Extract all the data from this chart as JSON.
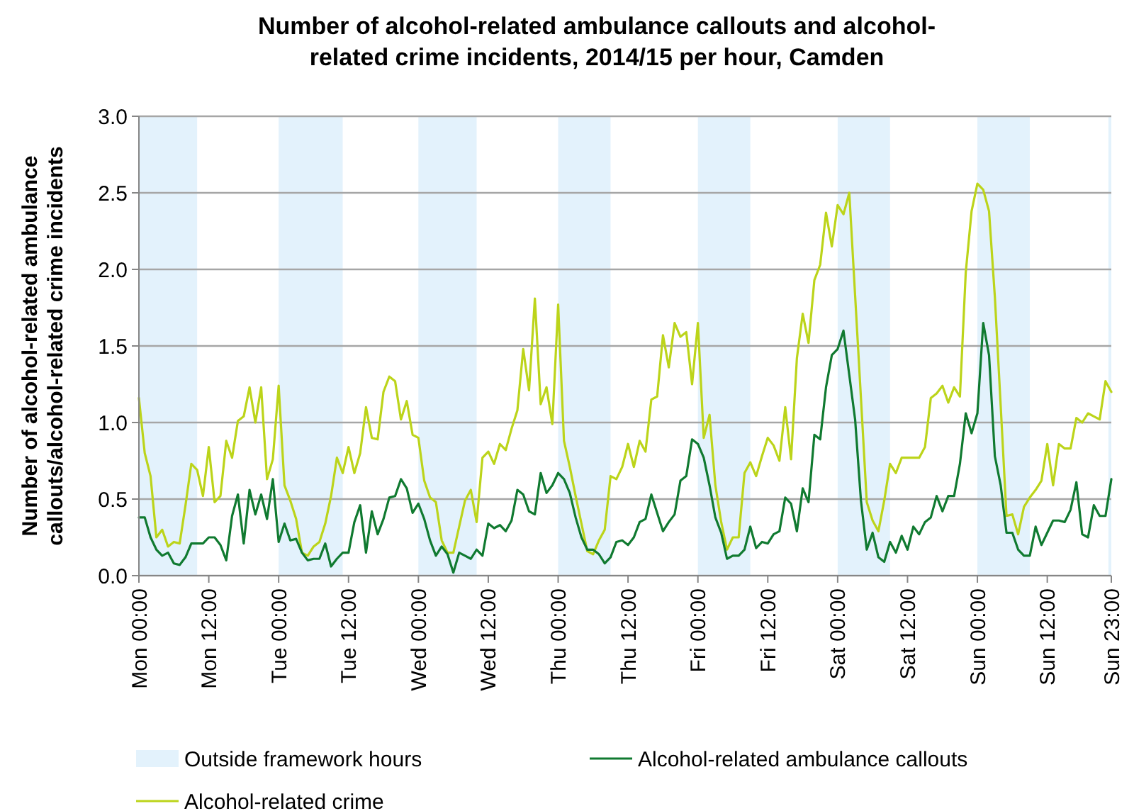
{
  "chart_data": {
    "type": "line",
    "title": "Number of alcohol-related ambulance callouts and alcohol-related crime incidents, 2014/15 per hour, Camden",
    "ylabel": "Number of alcohol-related ambulance callouts/alcohol-related crime incidents",
    "categories": [
      "Mon 00:00",
      null,
      null,
      null,
      null,
      null,
      null,
      null,
      null,
      null,
      null,
      null,
      "Mon 12:00",
      null,
      null,
      null,
      null,
      null,
      null,
      null,
      null,
      null,
      null,
      null,
      "Tue 00:00",
      null,
      null,
      null,
      null,
      null,
      null,
      null,
      null,
      null,
      null,
      null,
      "Tue 12:00",
      null,
      null,
      null,
      null,
      null,
      null,
      null,
      null,
      null,
      null,
      null,
      "Wed 00:00",
      null,
      null,
      null,
      null,
      null,
      null,
      null,
      null,
      null,
      null,
      null,
      "Wed 12:00",
      null,
      null,
      null,
      null,
      null,
      null,
      null,
      null,
      null,
      null,
      null,
      "Thu 00:00",
      null,
      null,
      null,
      null,
      null,
      null,
      null,
      null,
      null,
      null,
      null,
      "Thu 12:00",
      null,
      null,
      null,
      null,
      null,
      null,
      null,
      null,
      null,
      null,
      null,
      "Fri 00:00",
      null,
      null,
      null,
      null,
      null,
      null,
      null,
      null,
      null,
      null,
      null,
      "Fri 12:00",
      null,
      null,
      null,
      null,
      null,
      null,
      null,
      null,
      null,
      null,
      null,
      "Sat 00:00",
      null,
      null,
      null,
      null,
      null,
      null,
      null,
      null,
      null,
      null,
      null,
      "Sat 12:00",
      null,
      null,
      null,
      null,
      null,
      null,
      null,
      null,
      null,
      null,
      null,
      "Sun 00:00",
      null,
      null,
      null,
      null,
      null,
      null,
      null,
      null,
      null,
      null,
      null,
      "Sun 12:00",
      null,
      null,
      null,
      null,
      null,
      null,
      null,
      null,
      null,
      null,
      "Sun 23:00"
    ],
    "ylim": [
      0,
      3
    ],
    "yticks": [
      {
        "value": 0,
        "label": "0.0"
      },
      {
        "value": 0.5,
        "label": "0.5"
      },
      {
        "value": 1,
        "label": "1.0"
      },
      {
        "value": 1.5,
        "label": "1.5"
      },
      {
        "value": 2,
        "label": "2.0"
      },
      {
        "value": 2.5,
        "label": "2.5"
      },
      {
        "value": 3,
        "label": "3.0"
      }
    ],
    "grid": "y",
    "legend": "bottom",
    "marker": "none",
    "line_style": "solid",
    "annotations": [
      "Outside framework hours"
    ],
    "series": [
      {
        "name": "Alcohol-related ambulance callouts",
        "color": "#107a30",
        "values": [
          0.38,
          0.38,
          0.25,
          0.17,
          0.13,
          0.15,
          0.08,
          0.07,
          0.12,
          0.21,
          0.21,
          0.21,
          0.25,
          0.25,
          0.2,
          0.1,
          0.39,
          0.53,
          0.21,
          0.56,
          0.4,
          0.53,
          0.37,
          0.63,
          0.22,
          0.34,
          0.23,
          0.24,
          0.15,
          0.1,
          0.11,
          0.11,
          0.21,
          0.06,
          0.11,
          0.15,
          0.15,
          0.35,
          0.46,
          0.15,
          0.42,
          0.27,
          0.37,
          0.51,
          0.52,
          0.63,
          0.57,
          0.41,
          0.47,
          0.37,
          0.23,
          0.13,
          0.19,
          0.14,
          0.02,
          0.15,
          0.13,
          0.11,
          0.17,
          0.13,
          0.34,
          0.31,
          0.33,
          0.29,
          0.36,
          0.56,
          0.53,
          0.42,
          0.4,
          0.67,
          0.54,
          0.59,
          0.67,
          0.63,
          0.54,
          0.38,
          0.25,
          0.17,
          0.17,
          0.14,
          0.08,
          0.12,
          0.22,
          0.23,
          0.2,
          0.25,
          0.35,
          0.37,
          0.53,
          0.41,
          0.29,
          0.35,
          0.4,
          0.62,
          0.65,
          0.89,
          0.86,
          0.77,
          0.59,
          0.38,
          0.28,
          0.11,
          0.13,
          0.13,
          0.17,
          0.32,
          0.18,
          0.22,
          0.21,
          0.27,
          0.29,
          0.51,
          0.47,
          0.29,
          0.57,
          0.48,
          0.92,
          0.89,
          1.23,
          1.44,
          1.48,
          1.6,
          1.31,
          1.02,
          0.49,
          0.17,
          0.28,
          0.12,
          0.09,
          0.22,
          0.15,
          0.26,
          0.17,
          0.32,
          0.27,
          0.35,
          0.38,
          0.52,
          0.42,
          0.52,
          0.52,
          0.73,
          1.06,
          0.93,
          1.06,
          1.65,
          1.44,
          0.78,
          0.59,
          0.28,
          0.28,
          0.17,
          0.13,
          0.13,
          0.32,
          0.2,
          0.28,
          0.36,
          0.36,
          0.35,
          0.43,
          0.61,
          0.27,
          0.25,
          0.46,
          0.39,
          0.39,
          0.63
        ]
      },
      {
        "name": "Alcohol-related crime",
        "color": "#bcd41a",
        "values": [
          1.16,
          0.8,
          0.65,
          0.25,
          0.3,
          0.19,
          0.22,
          0.21,
          0.46,
          0.73,
          0.69,
          0.52,
          0.84,
          0.48,
          0.52,
          0.88,
          0.77,
          1.01,
          1.04,
          1.23,
          1.0,
          1.23,
          0.63,
          0.76,
          1.24,
          0.59,
          0.49,
          0.37,
          0.15,
          0.13,
          0.19,
          0.22,
          0.34,
          0.52,
          0.77,
          0.67,
          0.84,
          0.67,
          0.8,
          1.1,
          0.9,
          0.89,
          1.2,
          1.3,
          1.27,
          1.02,
          1.14,
          0.92,
          0.9,
          0.62,
          0.51,
          0.48,
          0.23,
          0.15,
          0.15,
          0.32,
          0.49,
          0.56,
          0.35,
          0.77,
          0.81,
          0.73,
          0.86,
          0.82,
          0.96,
          1.08,
          1.48,
          1.21,
          1.81,
          1.12,
          1.23,
          0.99,
          1.77,
          0.88,
          0.71,
          0.52,
          0.34,
          0.16,
          0.14,
          0.23,
          0.3,
          0.65,
          0.63,
          0.71,
          0.86,
          0.71,
          0.88,
          0.81,
          1.15,
          1.17,
          1.57,
          1.36,
          1.65,
          1.56,
          1.59,
          1.25,
          1.65,
          0.9,
          1.05,
          0.59,
          0.35,
          0.17,
          0.25,
          0.25,
          0.67,
          0.74,
          0.65,
          0.78,
          0.9,
          0.85,
          0.75,
          1.1,
          0.76,
          1.42,
          1.71,
          1.52,
          1.93,
          2.03,
          2.37,
          2.15,
          2.42,
          2.36,
          2.5,
          1.83,
          1.16,
          0.48,
          0.36,
          0.29,
          0.49,
          0.73,
          0.67,
          0.77,
          0.77,
          0.77,
          0.77,
          0.84,
          1.16,
          1.19,
          1.24,
          1.13,
          1.23,
          1.17,
          1.98,
          2.38,
          2.56,
          2.52,
          2.38,
          1.82,
          1.11,
          0.39,
          0.4,
          0.27,
          0.45,
          0.51,
          0.56,
          0.62,
          0.86,
          0.59,
          0.86,
          0.83,
          0.83,
          1.03,
          1.0,
          1.06,
          1.04,
          1.02,
          1.27,
          1.2
        ]
      }
    ]
  }
}
